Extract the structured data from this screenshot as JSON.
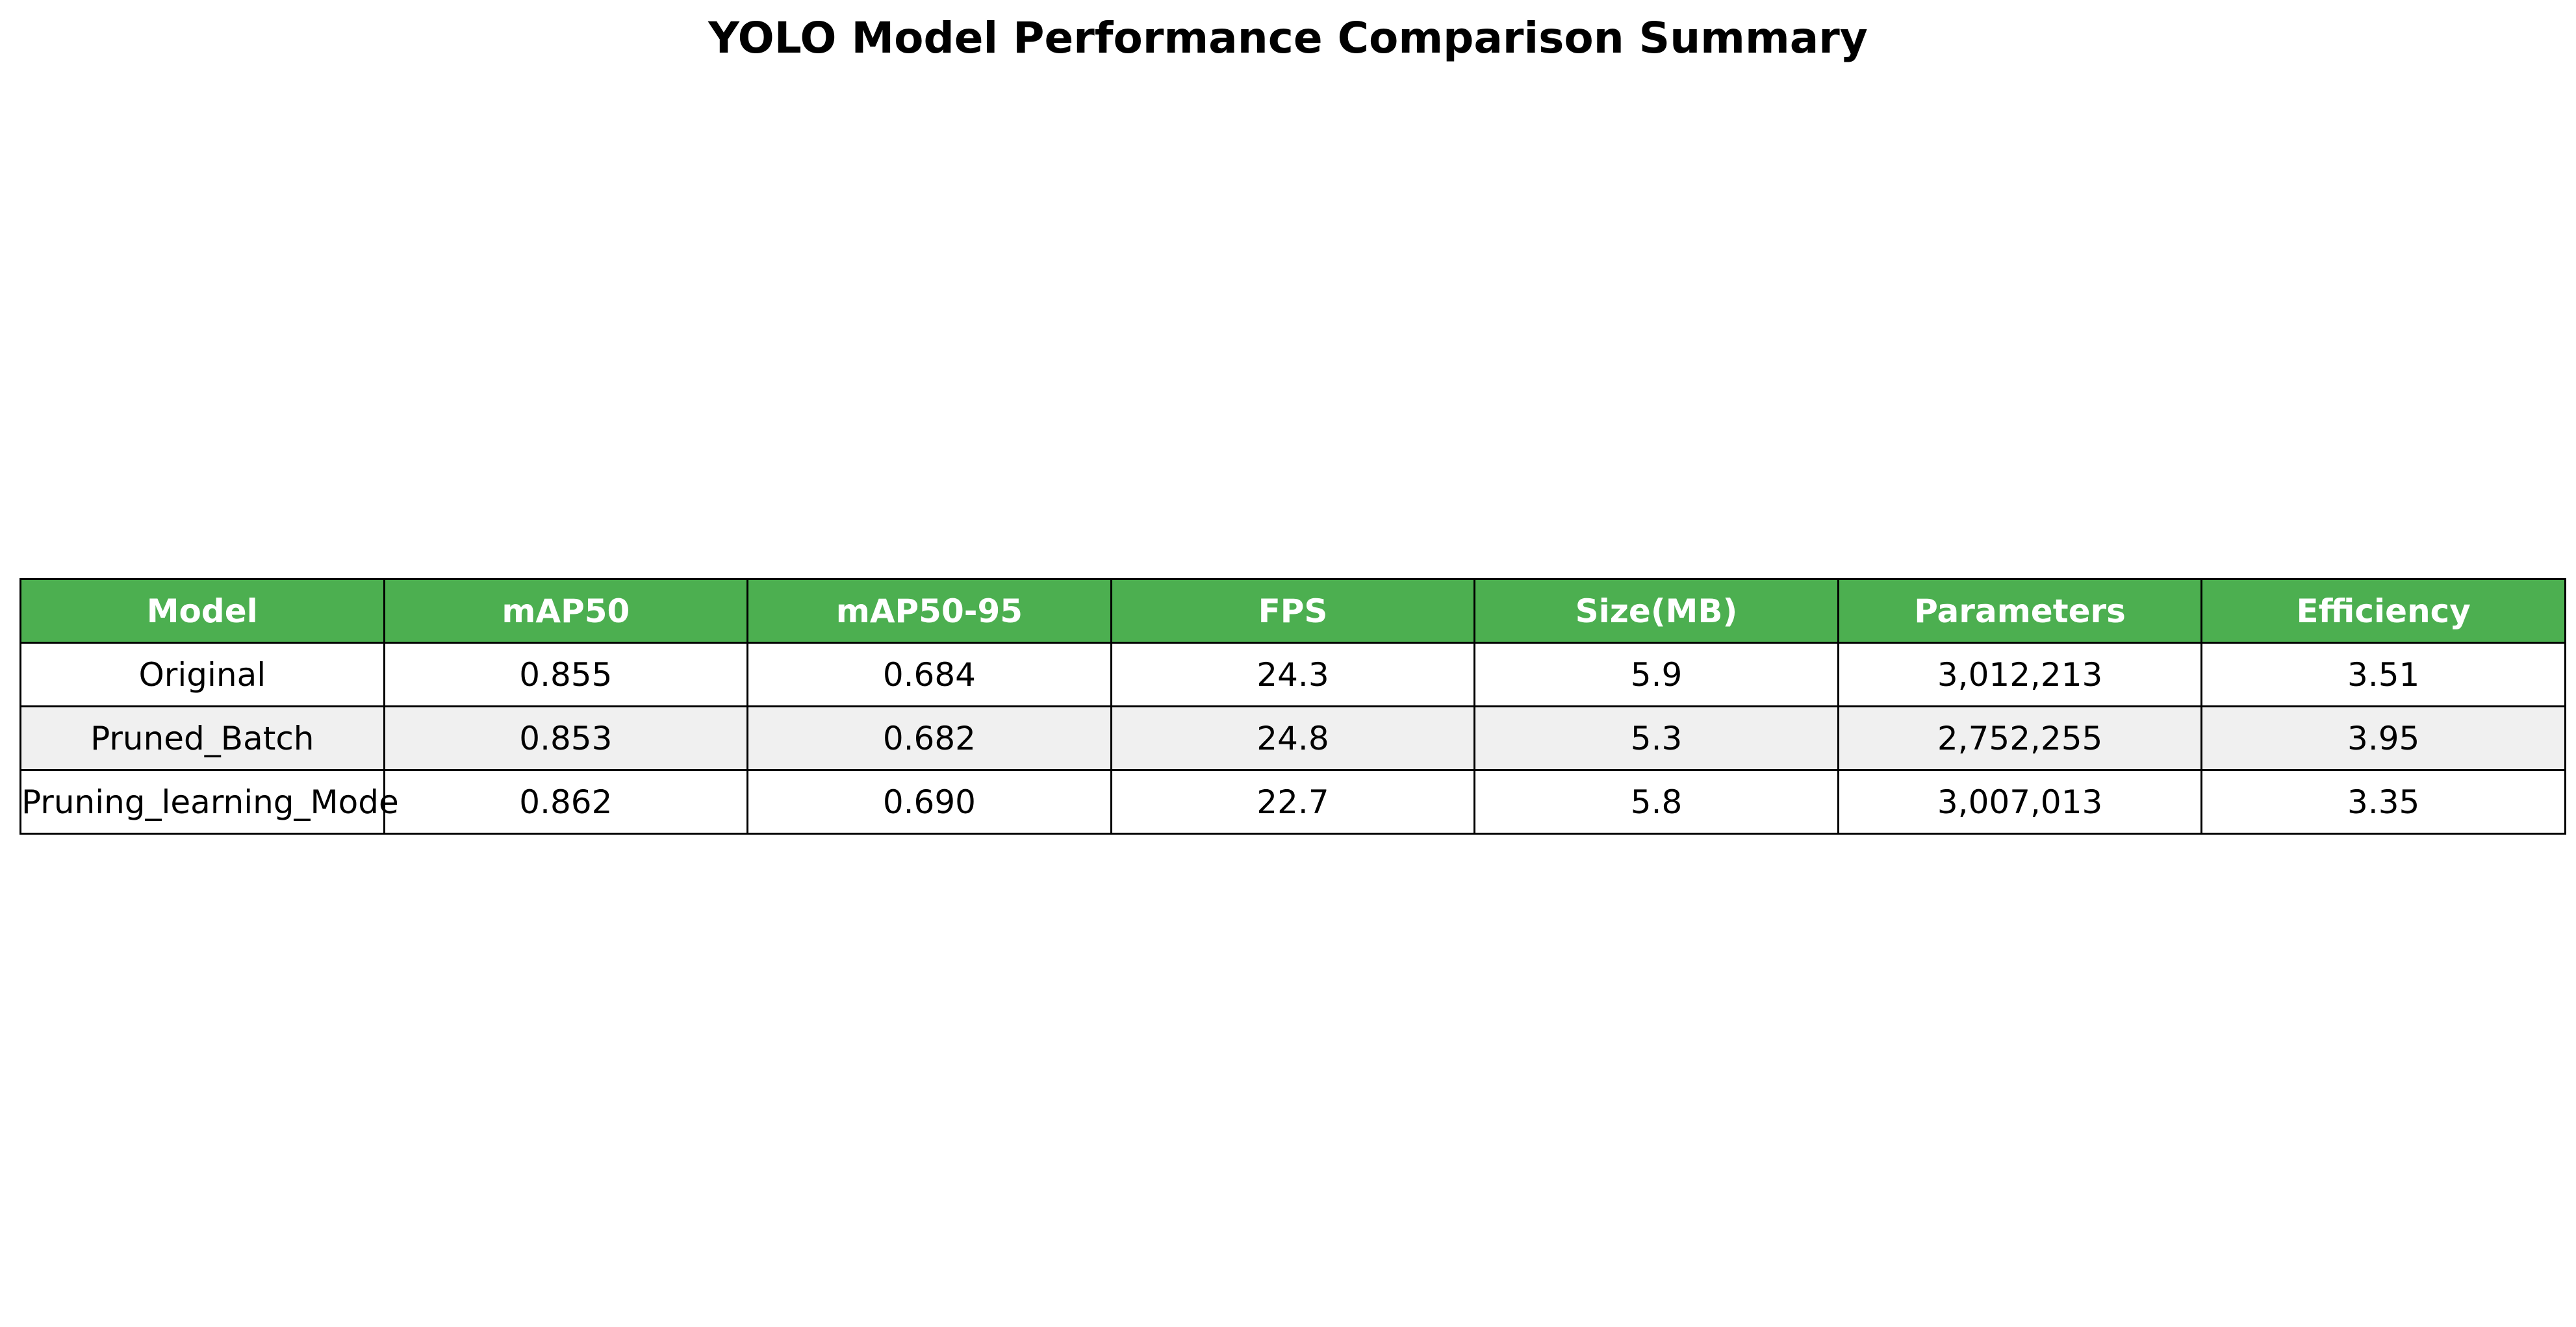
{
  "chart_data": {
    "type": "table",
    "title": "YOLO Model Performance Comparison Summary",
    "columns": [
      "Model",
      "mAP50",
      "mAP50-95",
      "FPS",
      "Size(MB)",
      "Parameters",
      "Efficiency"
    ],
    "rows": [
      [
        "Original",
        "0.855",
        "0.684",
        "24.3",
        "5.9",
        "3,012,213",
        "3.51"
      ],
      [
        "Pruned_Batch",
        "0.853",
        "0.682",
        "24.8",
        "5.3",
        "2,752,255",
        "3.95"
      ],
      [
        "Pruning_learning_Mode",
        "0.862",
        "0.690",
        "22.7",
        "5.8",
        "3,007,013",
        "3.35"
      ]
    ],
    "header_color": "#4caf50",
    "header_text_color": "#ffffff",
    "alt_row_color": "#f0f0f0"
  }
}
